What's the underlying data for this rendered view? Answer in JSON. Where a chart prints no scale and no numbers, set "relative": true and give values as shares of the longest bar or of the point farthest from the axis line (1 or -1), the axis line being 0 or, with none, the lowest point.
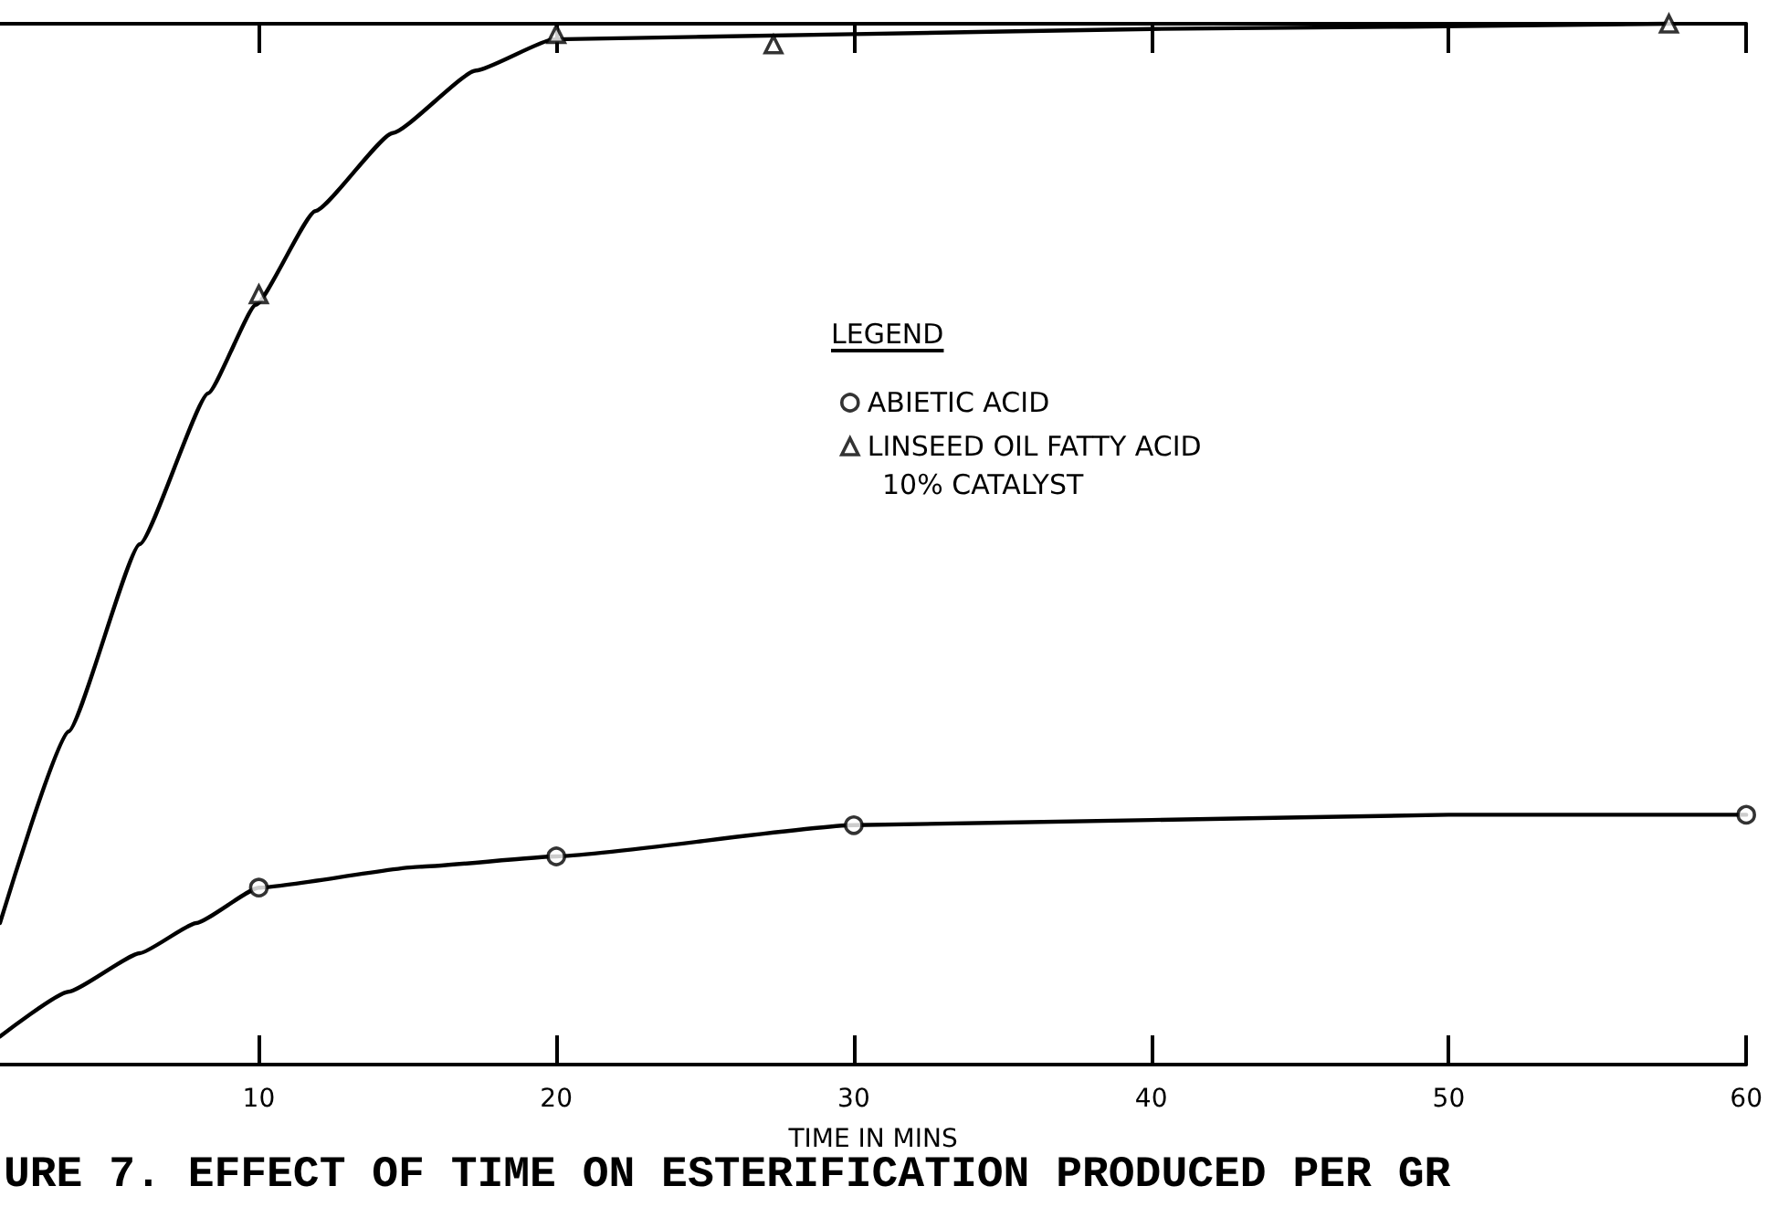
{
  "chart_data": {
    "type": "scatter",
    "title": "URE 7. EFFECT OF TIME ON ESTERIFICATION PRODUCED PER GR",
    "xlabel": "TIME IN MINS",
    "legend_title": "LEGEND",
    "annotations": [
      "10% CATALYST"
    ],
    "relative": true,
    "xlim": [
      1.3,
      60
    ],
    "xticks": [
      10,
      20,
      30,
      40,
      50,
      60
    ],
    "grid": false,
    "legend": "right",
    "series": [
      {
        "name": "ABIETIC ACID",
        "color": "#000000",
        "marker": "circle",
        "x": [
          10,
          20,
          30,
          60
        ],
        "values": [
          0.17,
          0.2,
          0.23,
          0.24
        ]
      },
      {
        "name": "LINSEED OIL FATTY ACID",
        "color": "#000000",
        "marker": "triangle",
        "x": [
          10,
          20,
          27.3,
          57.4
        ],
        "values": [
          0.74,
          0.99,
          0.98,
          1
        ]
      },
      {
        "type": "line",
        "color": "#000000",
        "marker": "none",
        "x": [
          1.3,
          3.6,
          6,
          7.9,
          10,
          15.4,
          20,
          30,
          40,
          50,
          60
        ],
        "values": [
          0.027,
          0.07,
          0.107,
          0.136,
          0.17,
          0.19,
          0.2,
          0.23,
          0.235,
          0.24,
          0.24
        ]
      },
      {
        "type": "line",
        "color": "#000000",
        "marker": "none",
        "x": [
          1.3,
          3.6,
          6,
          8.3,
          9.9,
          11.9,
          14.5,
          17.3,
          19.9,
          30,
          40,
          57.4
        ],
        "values": [
          0.136,
          0.32,
          0.5,
          0.645,
          0.73,
          0.82,
          0.895,
          0.955,
          0.985,
          0.99,
          0.995,
          1
        ]
      }
    ]
  }
}
